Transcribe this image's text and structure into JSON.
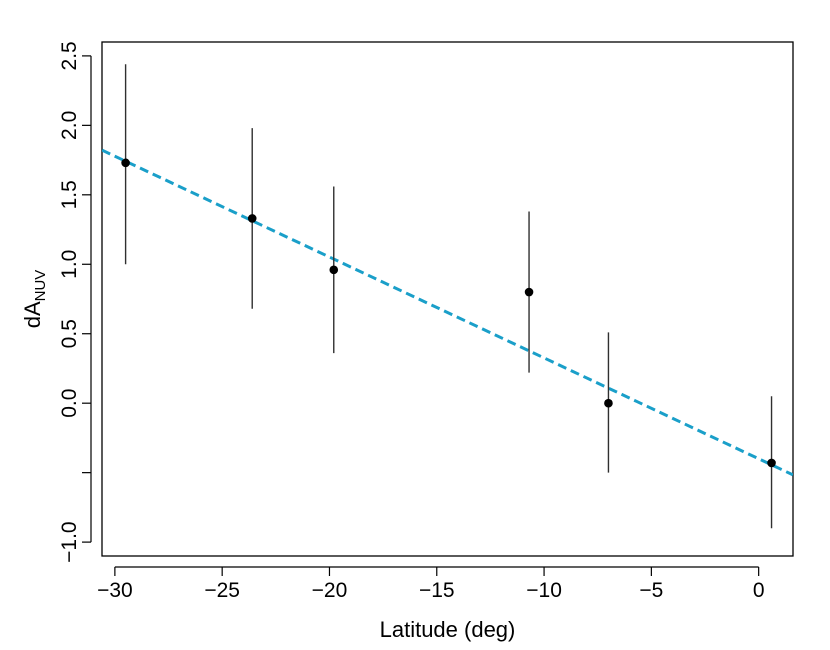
{
  "chart_data": {
    "type": "scatter",
    "title": "",
    "xlabel": "Latitude (deg)",
    "ylabel": {
      "main": "dA",
      "subscript": "NUV"
    },
    "xlim": [
      -30.6,
      1.6
    ],
    "ylim": [
      -1.1,
      2.6
    ],
    "x_ticks": [
      -30,
      -25,
      -20,
      -15,
      -10,
      -5,
      0
    ],
    "x_tick_labels": [
      "−30",
      "−25",
      "−20",
      "−15",
      "−10",
      "−5",
      "0"
    ],
    "y_ticks": [
      -1.0,
      -0.5,
      0.0,
      0.5,
      1.0,
      1.5,
      2.0,
      2.5
    ],
    "y_tick_labels": [
      "−1.0",
      "",
      "0.0",
      "0.5",
      "1.0",
      "1.5",
      "2.0",
      "2.5"
    ],
    "grid": false,
    "legend": "none",
    "series": [
      {
        "points": [
          {
            "x": -29.5,
            "y": 1.73,
            "y_low": 1.0,
            "y_high": 2.44
          },
          {
            "x": -23.6,
            "y": 1.33,
            "y_low": 0.68,
            "y_high": 1.98
          },
          {
            "x": -19.8,
            "y": 0.96,
            "y_low": 0.36,
            "y_high": 1.56
          },
          {
            "x": -10.7,
            "y": 0.8,
            "y_low": 0.22,
            "y_high": 1.38
          },
          {
            "x": -7.0,
            "y": 0.0,
            "y_low": -0.5,
            "y_high": 0.51
          },
          {
            "x": 0.6,
            "y": -0.43,
            "y_low": -0.9,
            "y_high": 0.05
          }
        ],
        "marker_color": "#000000",
        "errorbar_color": "#303030"
      }
    ],
    "fit_line": {
      "slope": -0.0726,
      "intercept": -0.4,
      "color": "#1a9fc9",
      "style": "dashed"
    }
  }
}
